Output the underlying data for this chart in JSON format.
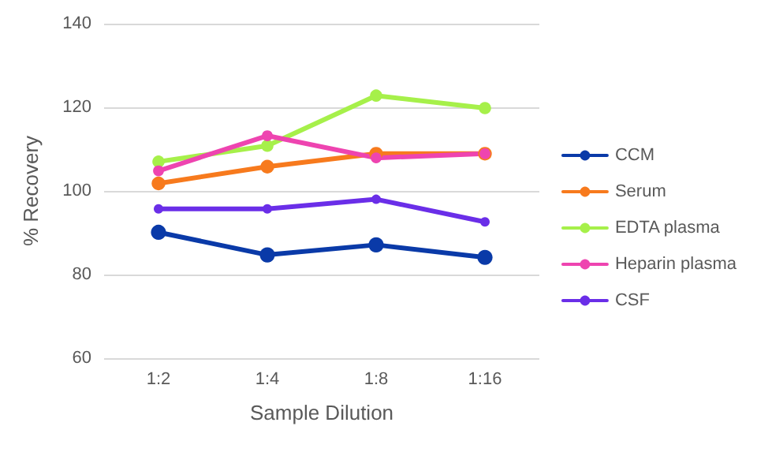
{
  "chart_data": {
    "type": "line",
    "xlabel": "Sample Dilution",
    "ylabel": "% Recovery",
    "categories": [
      "1:2",
      "1:4",
      "1:8",
      "1:16"
    ],
    "series": [
      {
        "name": "CCM",
        "color": "#0a3aa8",
        "values": [
          90.1,
          84.7,
          87.1,
          84.1
        ]
      },
      {
        "name": "Serum",
        "color": "#f77a1d",
        "values": [
          101.8,
          105.8,
          108.9,
          108.9
        ]
      },
      {
        "name": "EDTA plasma",
        "color": "#a6f04a",
        "values": [
          107,
          110.8,
          122.8,
          119.8
        ]
      },
      {
        "name": "Heparin plasma",
        "color": "#ee44b0",
        "values": [
          104.8,
          113.2,
          107.9,
          108.9
        ]
      },
      {
        "name": "CSF",
        "color": "#6a2ee8",
        "values": [
          95.7,
          95.7,
          98,
          92.6
        ]
      }
    ],
    "ylim": [
      60,
      140
    ],
    "yticks": [
      60,
      80,
      100,
      120,
      140
    ],
    "grid": "y",
    "legend": "right",
    "marker": "circle",
    "line_style": "solid"
  }
}
